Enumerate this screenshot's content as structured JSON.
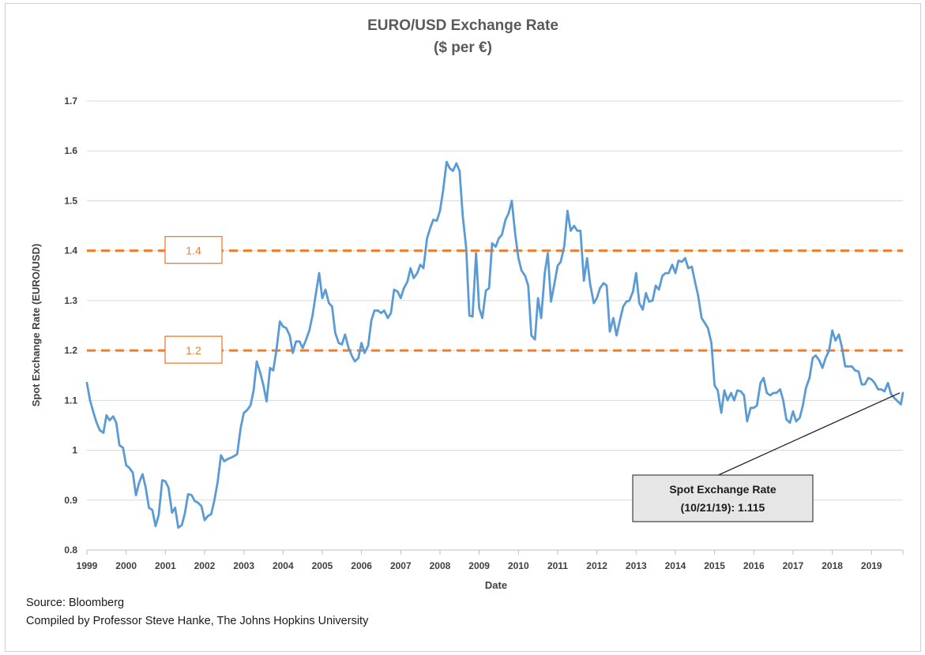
{
  "chart_data": {
    "type": "line",
    "title": "EURO/USD Exchange Rate",
    "subtitle": "($ per €)",
    "xlabel": "Date",
    "ylabel": "Spot Exchange Rate (EURO/USD)",
    "ylim": [
      0.8,
      1.7
    ],
    "yticks": [
      "0.8",
      "0.9",
      "1",
      "1.1",
      "1.2",
      "1.3",
      "1.4",
      "1.5",
      "1.6",
      "1.7"
    ],
    "xticks": [
      "1999",
      "2000",
      "2001",
      "2002",
      "2003",
      "2004",
      "2005",
      "2006",
      "2007",
      "2008",
      "2009",
      "2010",
      "2011",
      "2012",
      "2013",
      "2014",
      "2015",
      "2016",
      "2017",
      "2018",
      "2019"
    ],
    "xlim": [
      1999,
      2019.8
    ],
    "grid": "horizontal",
    "line_color": "#5b9bd5",
    "reference_lines": [
      {
        "value": 1.4,
        "label": "1.4",
        "color": "#ed7d31"
      },
      {
        "value": 1.2,
        "label": "1.2",
        "color": "#ed7d31"
      }
    ],
    "annotation": {
      "line1": "Spot Exchange Rate",
      "line2": "(10/21/19): 1.115",
      "value": 1.115
    },
    "series": [
      {
        "points": [
          [
            1999.0,
            1.135
          ],
          [
            1999.08,
            1.1
          ],
          [
            1999.17,
            1.075
          ],
          [
            1999.25,
            1.055
          ],
          [
            1999.33,
            1.04
          ],
          [
            1999.42,
            1.035
          ],
          [
            1999.5,
            1.07
          ],
          [
            1999.58,
            1.06
          ],
          [
            1999.67,
            1.068
          ],
          [
            1999.75,
            1.055
          ],
          [
            1999.83,
            1.01
          ],
          [
            1999.92,
            1.005
          ],
          [
            2000.0,
            0.97
          ],
          [
            2000.08,
            0.965
          ],
          [
            2000.17,
            0.955
          ],
          [
            2000.25,
            0.91
          ],
          [
            2000.33,
            0.935
          ],
          [
            2000.42,
            0.952
          ],
          [
            2000.5,
            0.925
          ],
          [
            2000.58,
            0.885
          ],
          [
            2000.67,
            0.88
          ],
          [
            2000.75,
            0.848
          ],
          [
            2000.83,
            0.87
          ],
          [
            2000.92,
            0.94
          ],
          [
            2001.0,
            0.938
          ],
          [
            2001.08,
            0.925
          ],
          [
            2001.17,
            0.875
          ],
          [
            2001.25,
            0.885
          ],
          [
            2001.33,
            0.845
          ],
          [
            2001.42,
            0.85
          ],
          [
            2001.5,
            0.875
          ],
          [
            2001.58,
            0.912
          ],
          [
            2001.67,
            0.91
          ],
          [
            2001.75,
            0.898
          ],
          [
            2001.83,
            0.895
          ],
          [
            2001.92,
            0.888
          ],
          [
            2002.0,
            0.86
          ],
          [
            2002.08,
            0.868
          ],
          [
            2002.17,
            0.872
          ],
          [
            2002.25,
            0.9
          ],
          [
            2002.33,
            0.935
          ],
          [
            2002.42,
            0.99
          ],
          [
            2002.5,
            0.978
          ],
          [
            2002.58,
            0.982
          ],
          [
            2002.67,
            0.985
          ],
          [
            2002.75,
            0.988
          ],
          [
            2002.83,
            0.992
          ],
          [
            2002.92,
            1.045
          ],
          [
            2003.0,
            1.075
          ],
          [
            2003.08,
            1.08
          ],
          [
            2003.17,
            1.09
          ],
          [
            2003.25,
            1.12
          ],
          [
            2003.33,
            1.178
          ],
          [
            2003.42,
            1.155
          ],
          [
            2003.5,
            1.13
          ],
          [
            2003.58,
            1.098
          ],
          [
            2003.67,
            1.165
          ],
          [
            2003.75,
            1.16
          ],
          [
            2003.83,
            1.2
          ],
          [
            2003.92,
            1.258
          ],
          [
            2004.0,
            1.248
          ],
          [
            2004.08,
            1.245
          ],
          [
            2004.17,
            1.23
          ],
          [
            2004.25,
            1.195
          ],
          [
            2004.33,
            1.218
          ],
          [
            2004.42,
            1.218
          ],
          [
            2004.5,
            1.205
          ],
          [
            2004.58,
            1.22
          ],
          [
            2004.67,
            1.24
          ],
          [
            2004.75,
            1.27
          ],
          [
            2004.83,
            1.31
          ],
          [
            2004.92,
            1.355
          ],
          [
            2005.0,
            1.305
          ],
          [
            2005.08,
            1.322
          ],
          [
            2005.17,
            1.295
          ],
          [
            2005.25,
            1.288
          ],
          [
            2005.33,
            1.235
          ],
          [
            2005.42,
            1.215
          ],
          [
            2005.5,
            1.212
          ],
          [
            2005.58,
            1.232
          ],
          [
            2005.67,
            1.205
          ],
          [
            2005.75,
            1.19
          ],
          [
            2005.83,
            1.178
          ],
          [
            2005.92,
            1.185
          ],
          [
            2006.0,
            1.215
          ],
          [
            2006.08,
            1.195
          ],
          [
            2006.17,
            1.21
          ],
          [
            2006.25,
            1.26
          ],
          [
            2006.33,
            1.28
          ],
          [
            2006.42,
            1.28
          ],
          [
            2006.5,
            1.275
          ],
          [
            2006.58,
            1.28
          ],
          [
            2006.67,
            1.265
          ],
          [
            2006.75,
            1.275
          ],
          [
            2006.83,
            1.322
          ],
          [
            2006.92,
            1.318
          ],
          [
            2007.0,
            1.305
          ],
          [
            2007.08,
            1.325
          ],
          [
            2007.17,
            1.338
          ],
          [
            2007.25,
            1.365
          ],
          [
            2007.33,
            1.345
          ],
          [
            2007.42,
            1.355
          ],
          [
            2007.5,
            1.372
          ],
          [
            2007.58,
            1.365
          ],
          [
            2007.67,
            1.425
          ],
          [
            2007.75,
            1.445
          ],
          [
            2007.83,
            1.462
          ],
          [
            2007.92,
            1.46
          ],
          [
            2008.0,
            1.48
          ],
          [
            2008.08,
            1.52
          ],
          [
            2008.17,
            1.578
          ],
          [
            2008.25,
            1.565
          ],
          [
            2008.33,
            1.56
          ],
          [
            2008.42,
            1.575
          ],
          [
            2008.5,
            1.56
          ],
          [
            2008.58,
            1.47
          ],
          [
            2008.67,
            1.405
          ],
          [
            2008.75,
            1.27
          ],
          [
            2008.83,
            1.268
          ],
          [
            2008.92,
            1.395
          ],
          [
            2009.0,
            1.285
          ],
          [
            2009.08,
            1.265
          ],
          [
            2009.17,
            1.32
          ],
          [
            2009.25,
            1.325
          ],
          [
            2009.33,
            1.415
          ],
          [
            2009.42,
            1.408
          ],
          [
            2009.5,
            1.425
          ],
          [
            2009.58,
            1.432
          ],
          [
            2009.67,
            1.462
          ],
          [
            2009.75,
            1.475
          ],
          [
            2009.83,
            1.5
          ],
          [
            2009.92,
            1.432
          ],
          [
            2010.0,
            1.385
          ],
          [
            2010.08,
            1.36
          ],
          [
            2010.17,
            1.35
          ],
          [
            2010.25,
            1.33
          ],
          [
            2010.33,
            1.23
          ],
          [
            2010.42,
            1.222
          ],
          [
            2010.5,
            1.305
          ],
          [
            2010.58,
            1.265
          ],
          [
            2010.67,
            1.355
          ],
          [
            2010.75,
            1.395
          ],
          [
            2010.83,
            1.298
          ],
          [
            2010.92,
            1.335
          ],
          [
            2011.0,
            1.37
          ],
          [
            2011.08,
            1.378
          ],
          [
            2011.17,
            1.41
          ],
          [
            2011.25,
            1.48
          ],
          [
            2011.33,
            1.44
          ],
          [
            2011.42,
            1.45
          ],
          [
            2011.5,
            1.44
          ],
          [
            2011.58,
            1.44
          ],
          [
            2011.67,
            1.34
          ],
          [
            2011.75,
            1.385
          ],
          [
            2011.83,
            1.332
          ],
          [
            2011.92,
            1.295
          ],
          [
            2012.0,
            1.305
          ],
          [
            2012.08,
            1.325
          ],
          [
            2012.17,
            1.335
          ],
          [
            2012.25,
            1.33
          ],
          [
            2012.33,
            1.238
          ],
          [
            2012.42,
            1.265
          ],
          [
            2012.5,
            1.23
          ],
          [
            2012.58,
            1.258
          ],
          [
            2012.67,
            1.288
          ],
          [
            2012.75,
            1.298
          ],
          [
            2012.83,
            1.3
          ],
          [
            2012.92,
            1.318
          ],
          [
            2013.0,
            1.355
          ],
          [
            2013.08,
            1.295
          ],
          [
            2013.17,
            1.282
          ],
          [
            2013.25,
            1.315
          ],
          [
            2013.33,
            1.298
          ],
          [
            2013.42,
            1.3
          ],
          [
            2013.5,
            1.33
          ],
          [
            2013.58,
            1.322
          ],
          [
            2013.67,
            1.35
          ],
          [
            2013.75,
            1.355
          ],
          [
            2013.83,
            1.355
          ],
          [
            2013.92,
            1.372
          ],
          [
            2014.0,
            1.355
          ],
          [
            2014.08,
            1.38
          ],
          [
            2014.17,
            1.378
          ],
          [
            2014.25,
            1.385
          ],
          [
            2014.33,
            1.365
          ],
          [
            2014.42,
            1.368
          ],
          [
            2014.5,
            1.338
          ],
          [
            2014.58,
            1.31
          ],
          [
            2014.67,
            1.265
          ],
          [
            2014.75,
            1.255
          ],
          [
            2014.83,
            1.245
          ],
          [
            2014.92,
            1.215
          ],
          [
            2015.0,
            1.13
          ],
          [
            2015.08,
            1.12
          ],
          [
            2015.17,
            1.075
          ],
          [
            2015.25,
            1.12
          ],
          [
            2015.33,
            1.1
          ],
          [
            2015.42,
            1.115
          ],
          [
            2015.5,
            1.1
          ],
          [
            2015.58,
            1.12
          ],
          [
            2015.67,
            1.118
          ],
          [
            2015.75,
            1.11
          ],
          [
            2015.83,
            1.058
          ],
          [
            2015.92,
            1.085
          ],
          [
            2016.0,
            1.085
          ],
          [
            2016.08,
            1.09
          ],
          [
            2016.17,
            1.135
          ],
          [
            2016.25,
            1.145
          ],
          [
            2016.33,
            1.115
          ],
          [
            2016.42,
            1.11
          ],
          [
            2016.5,
            1.115
          ],
          [
            2016.58,
            1.115
          ],
          [
            2016.67,
            1.122
          ],
          [
            2016.75,
            1.1
          ],
          [
            2016.83,
            1.062
          ],
          [
            2016.92,
            1.055
          ],
          [
            2017.0,
            1.078
          ],
          [
            2017.08,
            1.058
          ],
          [
            2017.17,
            1.065
          ],
          [
            2017.25,
            1.09
          ],
          [
            2017.33,
            1.125
          ],
          [
            2017.42,
            1.145
          ],
          [
            2017.5,
            1.185
          ],
          [
            2017.58,
            1.19
          ],
          [
            2017.67,
            1.18
          ],
          [
            2017.75,
            1.165
          ],
          [
            2017.83,
            1.185
          ],
          [
            2017.92,
            1.2
          ],
          [
            2018.0,
            1.24
          ],
          [
            2018.08,
            1.22
          ],
          [
            2018.17,
            1.232
          ],
          [
            2018.25,
            1.205
          ],
          [
            2018.33,
            1.168
          ],
          [
            2018.42,
            1.168
          ],
          [
            2018.5,
            1.168
          ],
          [
            2018.58,
            1.16
          ],
          [
            2018.67,
            1.158
          ],
          [
            2018.75,
            1.132
          ],
          [
            2018.83,
            1.132
          ],
          [
            2018.92,
            1.145
          ],
          [
            2019.0,
            1.142
          ],
          [
            2019.08,
            1.135
          ],
          [
            2019.17,
            1.122
          ],
          [
            2019.25,
            1.122
          ],
          [
            2019.33,
            1.118
          ],
          [
            2019.42,
            1.135
          ],
          [
            2019.5,
            1.112
          ],
          [
            2019.58,
            1.105
          ],
          [
            2019.67,
            1.098
          ],
          [
            2019.75,
            1.092
          ],
          [
            2019.8,
            1.115
          ]
        ]
      }
    ]
  },
  "footer": {
    "source": "Source: Bloomberg",
    "compiled": "Compiled by Professor Steve Hanke, The Johns Hopkins University"
  }
}
